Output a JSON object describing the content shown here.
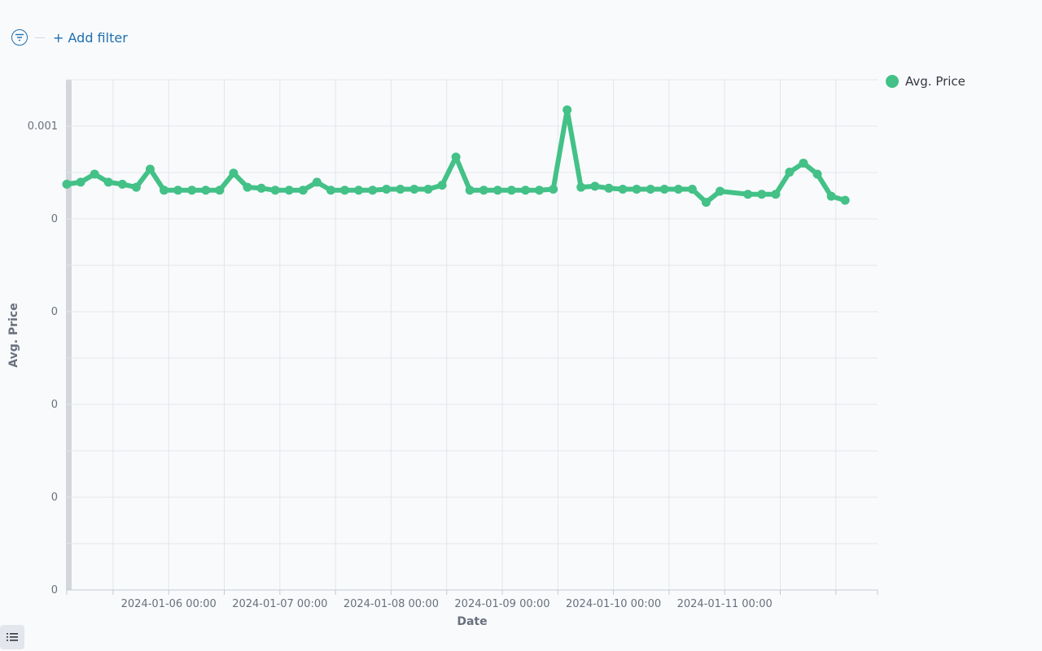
{
  "filter_bar": {
    "add_filter_label": "+ Add filter",
    "filter_icon": "filter-icon"
  },
  "legend": {
    "label": "Avg. Price",
    "color": "#43c187"
  },
  "list_toggle": {
    "icon": "list-icon"
  },
  "chart_data": {
    "type": "line",
    "xlabel": "Date",
    "ylabel": "Avg. Price",
    "x_tick_labels": [
      "2024-01-06 00:00",
      "2024-01-07 00:00",
      "2024-01-08 00:00",
      "2024-01-09 00:00",
      "2024-01-10 00:00",
      "2024-01-11 00:00"
    ],
    "y_tick_labels": [
      "0.001",
      "0",
      "0",
      "0",
      "0",
      "0"
    ],
    "ylim": [
      -0.00404,
      0.00104
    ],
    "xlim": [
      "2024-01-05 02:00",
      "2024-01-12 09:00"
    ],
    "grid": true,
    "legend_position": "top-right",
    "series": [
      {
        "name": "Avg. Price",
        "color": "#43c187",
        "points": [
          {
            "x": "2024-01-05 02:00",
            "y": 0.0
          },
          {
            "x": "2024-01-05 05:00",
            "y": 2e-05
          },
          {
            "x": "2024-01-05 08:00",
            "y": 0.0001
          },
          {
            "x": "2024-01-05 11:00",
            "y": 2e-05
          },
          {
            "x": "2024-01-05 14:00",
            "y": 0.0
          },
          {
            "x": "2024-01-05 17:00",
            "y": -3e-05
          },
          {
            "x": "2024-01-05 20:00",
            "y": 0.00015
          },
          {
            "x": "2024-01-05 23:00",
            "y": -6e-05
          },
          {
            "x": "2024-01-06 02:00",
            "y": -6e-05
          },
          {
            "x": "2024-01-06 05:00",
            "y": -6e-05
          },
          {
            "x": "2024-01-06 08:00",
            "y": -6e-05
          },
          {
            "x": "2024-01-06 11:00",
            "y": -6e-05
          },
          {
            "x": "2024-01-06 14:00",
            "y": 0.00011
          },
          {
            "x": "2024-01-06 17:00",
            "y": -3e-05
          },
          {
            "x": "2024-01-06 20:00",
            "y": -4e-05
          },
          {
            "x": "2024-01-06 23:00",
            "y": -6e-05
          },
          {
            "x": "2024-01-07 02:00",
            "y": -6e-05
          },
          {
            "x": "2024-01-07 05:00",
            "y": -6e-05
          },
          {
            "x": "2024-01-07 08:00",
            "y": 2e-05
          },
          {
            "x": "2024-01-07 11:00",
            "y": -6e-05
          },
          {
            "x": "2024-01-07 14:00",
            "y": -6e-05
          },
          {
            "x": "2024-01-07 17:00",
            "y": -6e-05
          },
          {
            "x": "2024-01-07 20:00",
            "y": -6e-05
          },
          {
            "x": "2024-01-07 23:00",
            "y": -5e-05
          },
          {
            "x": "2024-01-08 02:00",
            "y": -5e-05
          },
          {
            "x": "2024-01-08 05:00",
            "y": -5e-05
          },
          {
            "x": "2024-01-08 08:00",
            "y": -5e-05
          },
          {
            "x": "2024-01-08 11:00",
            "y": -1e-05
          },
          {
            "x": "2024-01-08 14:00",
            "y": 0.00027
          },
          {
            "x": "2024-01-08 17:00",
            "y": -6e-05
          },
          {
            "x": "2024-01-08 20:00",
            "y": -6e-05
          },
          {
            "x": "2024-01-08 23:00",
            "y": -6e-05
          },
          {
            "x": "2024-01-09 02:00",
            "y": -6e-05
          },
          {
            "x": "2024-01-09 05:00",
            "y": -6e-05
          },
          {
            "x": "2024-01-09 08:00",
            "y": -6e-05
          },
          {
            "x": "2024-01-09 11:00",
            "y": -5e-05
          },
          {
            "x": "2024-01-09 14:00",
            "y": 0.00074
          },
          {
            "x": "2024-01-09 17:00",
            "y": -3e-05
          },
          {
            "x": "2024-01-09 20:00",
            "y": -2e-05
          },
          {
            "x": "2024-01-09 23:00",
            "y": -4e-05
          },
          {
            "x": "2024-01-10 02:00",
            "y": -5e-05
          },
          {
            "x": "2024-01-10 05:00",
            "y": -5e-05
          },
          {
            "x": "2024-01-10 08:00",
            "y": -5e-05
          },
          {
            "x": "2024-01-10 11:00",
            "y": -5e-05
          },
          {
            "x": "2024-01-10 14:00",
            "y": -5e-05
          },
          {
            "x": "2024-01-10 17:00",
            "y": -5e-05
          },
          {
            "x": "2024-01-10 20:00",
            "y": -0.00018
          },
          {
            "x": "2024-01-10 23:00",
            "y": -7e-05
          },
          {
            "x": "2024-01-11 05:00",
            "y": -0.0001
          },
          {
            "x": "2024-01-11 08:00",
            "y": -0.0001
          },
          {
            "x": "2024-01-11 11:00",
            "y": -0.0001
          },
          {
            "x": "2024-01-11 14:00",
            "y": 0.00012
          },
          {
            "x": "2024-01-11 17:00",
            "y": 0.00021
          },
          {
            "x": "2024-01-11 20:00",
            "y": 0.0001
          },
          {
            "x": "2024-01-11 23:00",
            "y": -0.00012
          },
          {
            "x": "2024-01-12 02:00",
            "y": -0.00016
          }
        ]
      }
    ]
  }
}
